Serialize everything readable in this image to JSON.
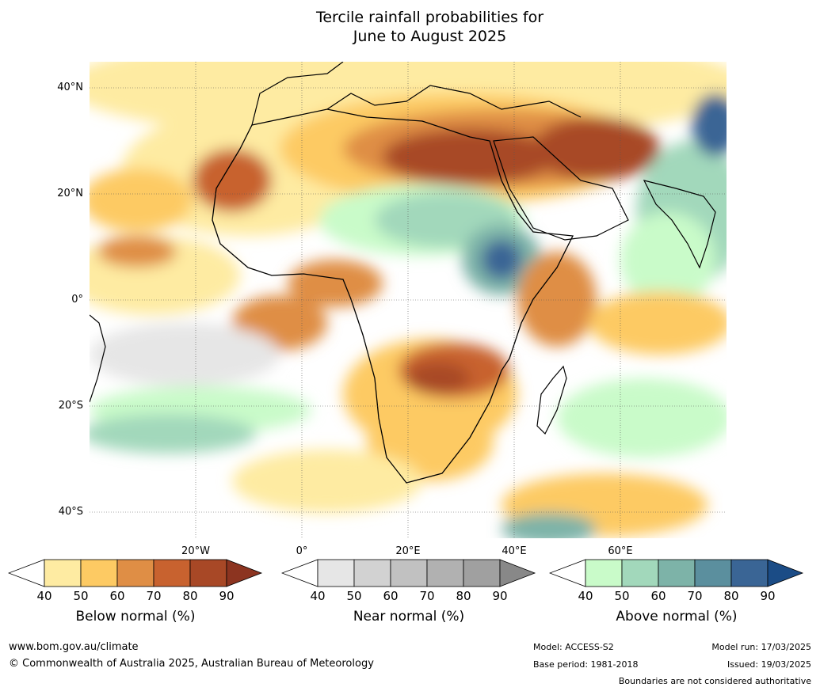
{
  "title": {
    "line1": "Tercile rainfall probabilities for",
    "line2": "June to August 2025"
  },
  "map": {
    "lat_labels": [
      "40°N",
      "20°N",
      "0°",
      "20°S",
      "40°S"
    ],
    "lon_labels": [
      "20°W",
      "0°",
      "20°E",
      "40°E",
      "60°E"
    ]
  },
  "colorbars": {
    "below": {
      "label": "Below normal (%)",
      "ticks": [
        "40",
        "50",
        "60",
        "70",
        "80",
        "90"
      ],
      "colors": [
        "#ffffff",
        "#feeba2",
        "#fdca63",
        "#df8e45",
        "#c8622f",
        "#a84826",
        "#8c3420"
      ]
    },
    "near": {
      "label": "Near normal (%)",
      "ticks": [
        "40",
        "50",
        "60",
        "70",
        "80",
        "90"
      ],
      "colors": [
        "#ffffff",
        "#e6e6e6",
        "#d2d2d2",
        "#c1c1c1",
        "#b1b1b1",
        "#a0a0a0",
        "#888888"
      ]
    },
    "above": {
      "label": "Above normal (%)",
      "ticks": [
        "40",
        "50",
        "60",
        "70",
        "80",
        "90"
      ],
      "colors": [
        "#ffffff",
        "#c9fbc9",
        "#a2d8bb",
        "#7db3a8",
        "#5b8f9e",
        "#3a6595",
        "#1b4c86"
      ]
    }
  },
  "footer": {
    "url": "www.bom.gov.au/climate",
    "copyright": "© Commonwealth of Australia 2025, Australian Bureau of Meteorology",
    "model": "Model: ACCESS-S2",
    "base_period": "Base period: 1981-2018",
    "model_run": "Model run: 17/03/2025",
    "issued": "Issued: 19/03/2025",
    "disclaimer": "Boundaries are not considered authoritative"
  }
}
